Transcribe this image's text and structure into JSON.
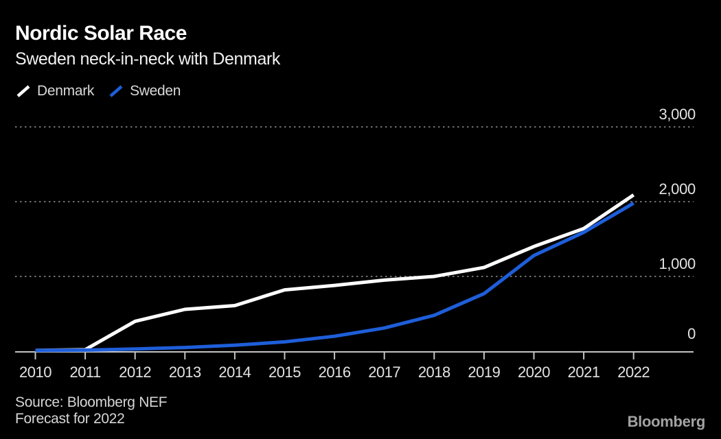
{
  "header": {
    "title": "Nordic Solar Race",
    "subtitle": "Sweden neck-in-neck with Denmark"
  },
  "chart_data": {
    "type": "line",
    "title": "Nordic Solar Race",
    "subtitle": "Sweden neck-in-neck with Denmark",
    "x": [
      2010,
      2011,
      2012,
      2013,
      2014,
      2015,
      2016,
      2017,
      2018,
      2019,
      2020,
      2021,
      2022
    ],
    "x_tick_labels": [
      "2010",
      "2011",
      "2012",
      "2013",
      "2014",
      "2015",
      "2016",
      "2017",
      "2018",
      "2019",
      "2020",
      "2021",
      "2022"
    ],
    "series": [
      {
        "name": "Denmark",
        "color": "#ffffff",
        "values": [
          10,
          20,
          400,
          560,
          610,
          820,
          880,
          950,
          1000,
          1120,
          1400,
          1640,
          2090
        ]
      },
      {
        "name": "Sweden",
        "color": "#1e5ed9",
        "values": [
          10,
          15,
          30,
          50,
          80,
          125,
          200,
          310,
          480,
          770,
          1280,
          1590,
          1980
        ]
      }
    ],
    "ylim": [
      0,
      3000
    ],
    "yticks": [
      0,
      1000,
      2000,
      3000
    ],
    "ytick_labels": [
      "0",
      "1,000",
      "2,000",
      "3,000"
    ],
    "y_axis_side": "right",
    "grid": "horizontal-dotted",
    "legend_position": "top-left"
  },
  "colors": {
    "background": "#000000",
    "grid": "#6e6e6e",
    "axis": "#c4c4c4",
    "tick_text": "#e3e3e3",
    "denmark_white": "#ffffff",
    "sweden_blue": "#1e5ed9",
    "logo_gray": "#a3a3a3"
  },
  "footer": {
    "source_line1": "Source: Bloomberg NEF",
    "source_line2": "Forecast for 2022",
    "logo": "Bloomberg"
  }
}
